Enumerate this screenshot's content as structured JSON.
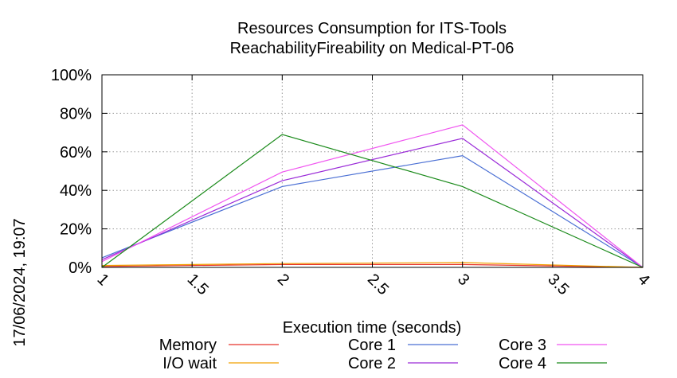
{
  "chart_data": {
    "type": "line",
    "title": "Resources Consumption for ITS-Tools",
    "subtitle": "ReachabilityFireability on Medical-PT-06",
    "xlabel": "Execution time (seconds)",
    "ylabel": "",
    "timestamp": "17/06/2024, 19:07",
    "xlim": [
      1,
      4
    ],
    "ylim": [
      0,
      100
    ],
    "x_ticks": [
      1,
      1.5,
      2,
      2.5,
      3,
      3.5,
      4
    ],
    "x_tick_labels": [
      "1",
      "1.5",
      "2",
      "2.5",
      "3",
      "3.5",
      "4"
    ],
    "y_ticks": [
      0,
      20,
      40,
      60,
      80,
      100
    ],
    "y_tick_labels": [
      "0%",
      "20%",
      "40%",
      "60%",
      "80%",
      "100%"
    ],
    "grid": true,
    "legend_position": "bottom",
    "series": [
      {
        "name": "Memory",
        "color": "#e8332a",
        "x": [
          1,
          2,
          3,
          4
        ],
        "y": [
          0.5,
          1.5,
          1.5,
          0
        ]
      },
      {
        "name": "I/O wait",
        "color": "#f0a000",
        "x": [
          1,
          2,
          3,
          4
        ],
        "y": [
          1,
          2,
          2.5,
          0
        ]
      },
      {
        "name": "Core 1",
        "color": "#4a6fd4",
        "x": [
          1,
          2,
          3,
          4
        ],
        "y": [
          5,
          42,
          58,
          0
        ]
      },
      {
        "name": "Core 2",
        "color": "#9a2ad8",
        "x": [
          1,
          2,
          3,
          4
        ],
        "y": [
          4,
          45,
          67,
          0
        ]
      },
      {
        "name": "Core 3",
        "color": "#f055f0",
        "x": [
          1,
          2,
          3,
          4
        ],
        "y": [
          3,
          49.5,
          74,
          0
        ]
      },
      {
        "name": "Core 4",
        "color": "#1a8a1a",
        "x": [
          1,
          2,
          3,
          4
        ],
        "y": [
          0,
          69,
          42,
          0
        ]
      }
    ]
  }
}
